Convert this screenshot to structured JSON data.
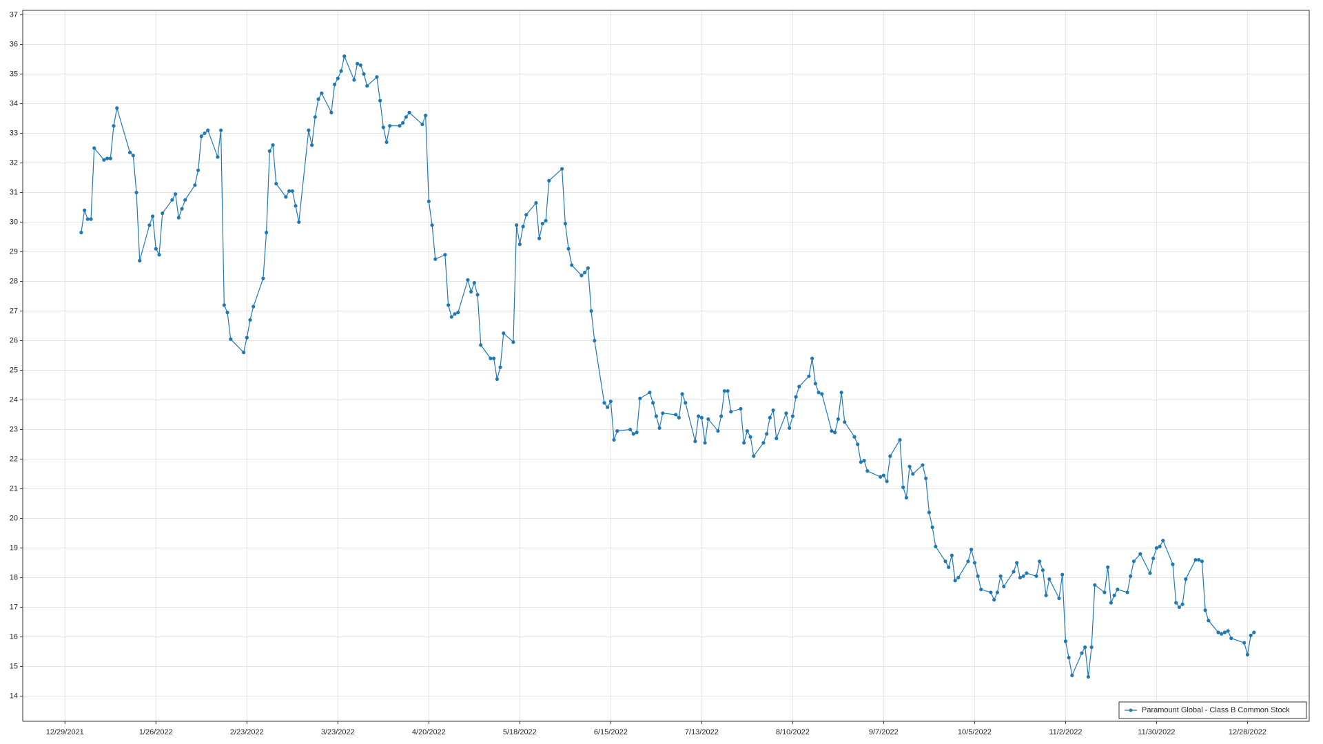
{
  "chart_data": {
    "type": "line",
    "x": [
      "1/3/2022",
      "1/4/2022",
      "1/5/2022",
      "1/6/2022",
      "1/7/2022",
      "1/10/2022",
      "1/11/2022",
      "1/12/2022",
      "1/13/2022",
      "1/14/2022",
      "1/18/2022",
      "1/19/2022",
      "1/20/2022",
      "1/21/2022",
      "1/24/2022",
      "1/25/2022",
      "1/26/2022",
      "1/27/2022",
      "1/28/2022",
      "1/31/2022",
      "2/1/2022",
      "2/2/2022",
      "2/3/2022",
      "2/4/2022",
      "2/7/2022",
      "2/8/2022",
      "2/9/2022",
      "2/10/2022",
      "2/11/2022",
      "2/14/2022",
      "2/15/2022",
      "2/16/2022",
      "2/17/2022",
      "2/18/2022",
      "2/22/2022",
      "2/23/2022",
      "2/24/2022",
      "2/25/2022",
      "2/28/2022",
      "3/1/2022",
      "3/2/2022",
      "3/3/2022",
      "3/4/2022",
      "3/7/2022",
      "3/8/2022",
      "3/9/2022",
      "3/10/2022",
      "3/11/2022",
      "3/14/2022",
      "3/15/2022",
      "3/16/2022",
      "3/17/2022",
      "3/18/2022",
      "3/21/2022",
      "3/22/2022",
      "3/23/2022",
      "3/24/2022",
      "3/25/2022",
      "3/28/2022",
      "3/29/2022",
      "3/30/2022",
      "3/31/2022",
      "4/1/2022",
      "4/4/2022",
      "4/5/2022",
      "4/6/2022",
      "4/7/2022",
      "4/8/2022",
      "4/11/2022",
      "4/12/2022",
      "4/13/2022",
      "4/14/2022",
      "4/18/2022",
      "4/19/2022",
      "4/20/2022",
      "4/21/2022",
      "4/22/2022",
      "4/25/2022",
      "4/26/2022",
      "4/27/2022",
      "4/28/2022",
      "4/29/2022",
      "5/2/2022",
      "5/3/2022",
      "5/4/2022",
      "5/5/2022",
      "5/6/2022",
      "5/9/2022",
      "5/10/2022",
      "5/11/2022",
      "5/12/2022",
      "5/13/2022",
      "5/16/2022",
      "5/17/2022",
      "5/18/2022",
      "5/19/2022",
      "5/20/2022",
      "5/23/2022",
      "5/24/2022",
      "5/25/2022",
      "5/26/2022",
      "5/27/2022",
      "5/31/2022",
      "6/1/2022",
      "6/2/2022",
      "6/3/2022",
      "6/6/2022",
      "6/7/2022",
      "6/8/2022",
      "6/9/2022",
      "6/10/2022",
      "6/13/2022",
      "6/14/2022",
      "6/15/2022",
      "6/16/2022",
      "6/17/2022",
      "6/21/2022",
      "6/22/2022",
      "6/23/2022",
      "6/24/2022",
      "6/27/2022",
      "6/28/2022",
      "6/29/2022",
      "6/30/2022",
      "7/1/2022",
      "7/5/2022",
      "7/6/2022",
      "7/7/2022",
      "7/8/2022",
      "7/11/2022",
      "7/12/2022",
      "7/13/2022",
      "7/14/2022",
      "7/15/2022",
      "7/18/2022",
      "7/19/2022",
      "7/20/2022",
      "7/21/2022",
      "7/22/2022",
      "7/25/2022",
      "7/26/2022",
      "7/27/2022",
      "7/28/2022",
      "7/29/2022",
      "8/1/2022",
      "8/2/2022",
      "8/3/2022",
      "8/4/2022",
      "8/5/2022",
      "8/8/2022",
      "8/9/2022",
      "8/10/2022",
      "8/11/2022",
      "8/12/2022",
      "8/15/2022",
      "8/16/2022",
      "8/17/2022",
      "8/18/2022",
      "8/19/2022",
      "8/22/2022",
      "8/23/2022",
      "8/24/2022",
      "8/25/2022",
      "8/26/2022",
      "8/29/2022",
      "8/30/2022",
      "8/31/2022",
      "9/1/2022",
      "9/2/2022",
      "9/6/2022",
      "9/7/2022",
      "9/8/2022",
      "9/9/2022",
      "9/12/2022",
      "9/13/2022",
      "9/14/2022",
      "9/15/2022",
      "9/16/2022",
      "9/19/2022",
      "9/20/2022",
      "9/21/2022",
      "9/22/2022",
      "9/23/2022",
      "9/26/2022",
      "9/27/2022",
      "9/28/2022",
      "9/29/2022",
      "9/30/2022",
      "10/3/2022",
      "10/4/2022",
      "10/5/2022",
      "10/6/2022",
      "10/7/2022",
      "10/10/2022",
      "10/11/2022",
      "10/12/2022",
      "10/13/2022",
      "10/14/2022",
      "10/17/2022",
      "10/18/2022",
      "10/19/2022",
      "10/20/2022",
      "10/21/2022",
      "10/24/2022",
      "10/25/2022",
      "10/26/2022",
      "10/27/2022",
      "10/28/2022",
      "10/31/2022",
      "11/1/2022",
      "11/2/2022",
      "11/3/2022",
      "11/4/2022",
      "11/7/2022",
      "11/8/2022",
      "11/9/2022",
      "11/10/2022",
      "11/11/2022",
      "11/14/2022",
      "11/15/2022",
      "11/16/2022",
      "11/17/2022",
      "11/18/2022",
      "11/21/2022",
      "11/22/2022",
      "11/23/2022",
      "11/25/2022",
      "11/28/2022",
      "11/29/2022",
      "11/30/2022",
      "12/1/2022",
      "12/2/2022",
      "12/5/2022",
      "12/6/2022",
      "12/7/2022",
      "12/8/2022",
      "12/9/2022",
      "12/12/2022",
      "12/13/2022",
      "12/14/2022",
      "12/15/2022",
      "12/16/2022",
      "12/19/2022",
      "12/20/2022",
      "12/21/2022",
      "12/22/2022",
      "12/23/2022",
      "12/27/2022",
      "12/28/2022",
      "12/29/2022",
      "12/30/2022"
    ],
    "series": [
      {
        "name": "Paramount Global - Class B Common Stock",
        "color": "#1f77b4",
        "values": [
          29.65,
          30.4,
          30.1,
          30.1,
          32.5,
          32.1,
          32.15,
          32.15,
          33.25,
          33.85,
          32.35,
          32.25,
          31.0,
          28.7,
          29.9,
          30.2,
          29.1,
          28.9,
          30.3,
          30.75,
          30.95,
          30.15,
          30.45,
          30.75,
          31.25,
          31.75,
          32.9,
          33.0,
          33.1,
          32.2,
          33.1,
          27.2,
          26.95,
          26.05,
          25.6,
          26.1,
          26.7,
          27.15,
          28.1,
          29.65,
          32.4,
          32.6,
          31.3,
          30.85,
          31.05,
          31.05,
          30.55,
          30.0,
          33.1,
          32.6,
          33.55,
          34.15,
          34.35,
          33.7,
          34.65,
          34.85,
          35.1,
          35.6,
          34.8,
          35.35,
          35.3,
          35.0,
          34.6,
          34.9,
          34.1,
          33.2,
          32.7,
          33.25,
          33.25,
          33.35,
          33.55,
          33.7,
          33.3,
          33.6,
          30.7,
          29.9,
          28.75,
          28.9,
          27.2,
          26.8,
          26.9,
          26.95,
          28.05,
          27.65,
          27.95,
          27.55,
          25.85,
          25.4,
          25.4,
          24.7,
          25.1,
          26.25,
          25.95,
          29.9,
          29.25,
          29.85,
          30.25,
          30.65,
          29.45,
          29.95,
          30.05,
          31.4,
          31.8,
          29.95,
          29.1,
          28.55,
          28.2,
          28.3,
          28.45,
          27.0,
          26.0,
          23.9,
          23.75,
          23.95,
          22.65,
          22.95,
          23.0,
          22.85,
          22.9,
          24.05,
          24.25,
          23.9,
          23.45,
          23.05,
          23.55,
          23.5,
          23.4,
          24.2,
          23.9,
          22.6,
          23.45,
          23.4,
          22.55,
          23.35,
          22.95,
          23.45,
          24.3,
          24.3,
          23.6,
          23.7,
          22.55,
          22.95,
          22.75,
          22.1,
          22.55,
          22.85,
          23.4,
          23.65,
          22.7,
          23.55,
          23.05,
          23.45,
          24.1,
          24.45,
          24.8,
          25.4,
          24.55,
          24.25,
          24.2,
          22.95,
          22.9,
          23.35,
          24.25,
          23.25,
          22.75,
          22.5,
          21.9,
          21.95,
          21.6,
          21.4,
          21.45,
          21.25,
          22.1,
          22.65,
          21.05,
          20.7,
          21.75,
          21.5,
          21.8,
          21.35,
          20.2,
          19.7,
          19.05,
          18.55,
          18.35,
          18.75,
          17.9,
          18.0,
          18.55,
          18.95,
          18.5,
          18.05,
          17.6,
          17.5,
          17.25,
          17.5,
          18.05,
          17.7,
          18.2,
          18.5,
          18.0,
          18.05,
          18.15,
          18.05,
          18.55,
          18.25,
          17.4,
          17.95,
          17.3,
          18.1,
          15.85,
          15.3,
          14.7,
          15.45,
          15.65,
          14.65,
          15.65,
          17.75,
          17.5,
          18.35,
          17.15,
          17.4,
          17.6,
          17.5,
          18.05,
          18.55,
          18.8,
          18.15,
          18.65,
          19.0,
          19.05,
          19.25,
          18.45,
          17.15,
          17.0,
          17.1,
          17.95,
          18.6,
          18.6,
          18.55,
          16.9,
          16.55,
          16.15,
          16.1,
          16.15,
          16.2,
          15.95,
          15.8,
          15.4,
          16.05,
          16.15
        ]
      }
    ],
    "xlim": [
      "12/16/2021",
      "1/16/2023"
    ],
    "xticks": [
      "12/29/2021",
      "1/26/2022",
      "2/23/2022",
      "3/23/2022",
      "4/20/2022",
      "5/18/2022",
      "6/15/2022",
      "7/13/2022",
      "8/10/2022",
      "9/7/2022",
      "10/5/2022",
      "11/2/2022",
      "11/30/2022",
      "12/28/2022"
    ],
    "ylim": [
      13.15,
      37.15
    ],
    "yticks": [
      14,
      15,
      16,
      17,
      18,
      19,
      20,
      21,
      22,
      23,
      24,
      25,
      26,
      27,
      28,
      29,
      30,
      31,
      32,
      33,
      34,
      35,
      36,
      37
    ],
    "grid": true,
    "legend": "lower-right"
  }
}
